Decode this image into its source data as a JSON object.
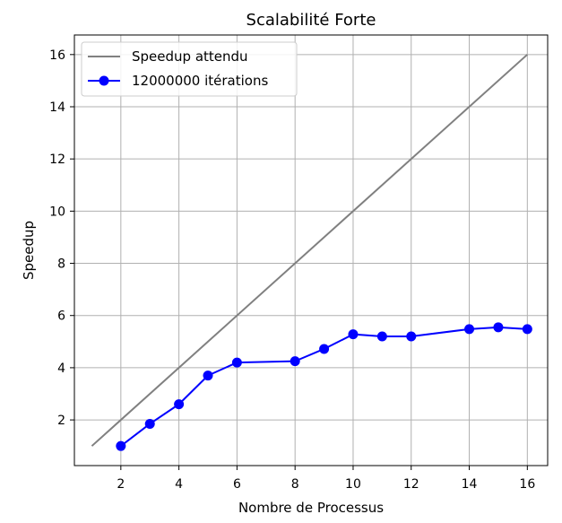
{
  "chart_data": {
    "type": "line",
    "title": "Scalabilité Forte",
    "xlabel": "Nombre de Processus",
    "ylabel": "Speedup",
    "xlim": [
      0.4,
      16.7
    ],
    "ylim": [
      0.25,
      16.75
    ],
    "xticks": [
      2,
      4,
      6,
      8,
      10,
      12,
      14,
      16
    ],
    "yticks": [
      2,
      4,
      6,
      8,
      10,
      12,
      14,
      16
    ],
    "xtick_labels": [
      "2",
      "4",
      "6",
      "8",
      "10",
      "12",
      "14",
      "16"
    ],
    "ytick_labels": [
      "2",
      "4",
      "6",
      "8",
      "10",
      "12",
      "14",
      "16"
    ],
    "grid": true,
    "legend_position": "top-left",
    "series": [
      {
        "name": "Speedup attendu",
        "color": "#808080",
        "marker": "none",
        "x": [
          1,
          16
        ],
        "y": [
          1,
          16
        ]
      },
      {
        "name": "12000000 itérations",
        "color": "#0000ff",
        "marker": "circle",
        "x": [
          2,
          3,
          4,
          5,
          6,
          8,
          9,
          10,
          11,
          12,
          14,
          15,
          16
        ],
        "y": [
          1.0,
          1.85,
          2.6,
          3.7,
          4.2,
          4.25,
          4.72,
          5.28,
          5.2,
          5.2,
          5.48,
          5.55,
          5.48
        ]
      }
    ]
  }
}
